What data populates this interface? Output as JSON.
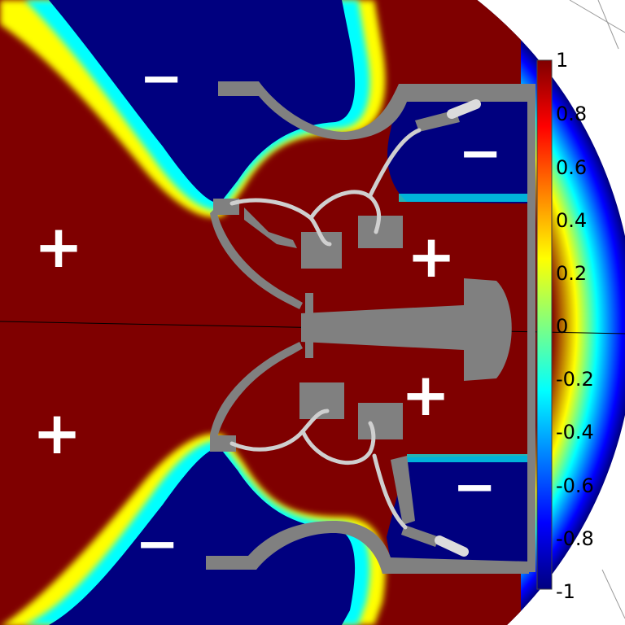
{
  "colorbar": {
    "ticks": [
      "1",
      "0.8",
      "0.6",
      "0.4",
      "0.2",
      "0",
      "-0.2",
      "-0.4",
      "-0.6",
      "-0.8",
      "-1"
    ],
    "colors": [
      "#7f0000",
      "#ff0000",
      "#ff8000",
      "#ffff00",
      "#80ff80",
      "#00ffff",
      "#0080ff",
      "#0000ff",
      "#00007f"
    ]
  },
  "region_signs": {
    "plus": "+",
    "minus": "−"
  },
  "colors": {
    "positive": "#7f0000",
    "negative": "#00007f",
    "electrode": "#808080",
    "wire": "#cfcfcf"
  }
}
